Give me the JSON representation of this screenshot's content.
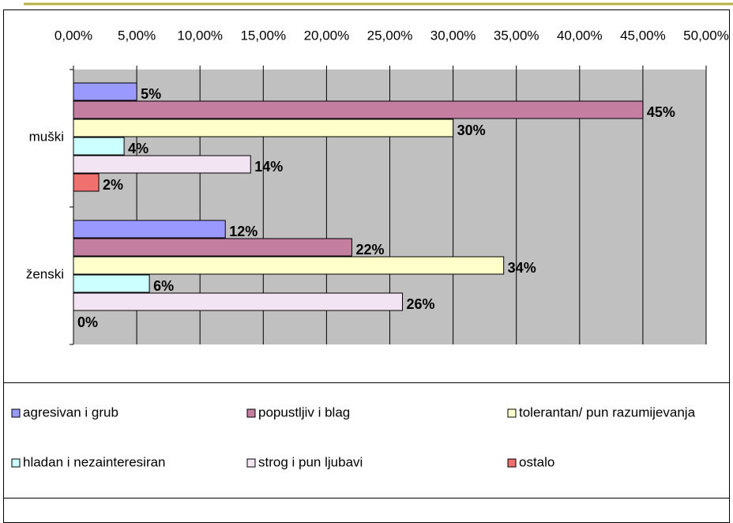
{
  "chart_data": {
    "type": "barh",
    "categories": [
      "muški",
      "ženski"
    ],
    "series": [
      {
        "name": "agresivan i grub",
        "color": "#9999ff",
        "values": [
          5,
          12
        ],
        "value_labels": [
          "5%",
          "12%"
        ]
      },
      {
        "name": "popustljiv i blag",
        "color": "#c47ea0",
        "values": [
          45,
          22
        ],
        "value_labels": [
          "45%",
          "22%"
        ]
      },
      {
        "name": "tolerantan/ pun razumijevanja",
        "color": "#ffffcc",
        "values": [
          30,
          34
        ],
        "value_labels": [
          "30%",
          "34%"
        ]
      },
      {
        "name": "hladan i nezainteresiran",
        "color": "#ccffff",
        "values": [
          4,
          6
        ],
        "value_labels": [
          "4%",
          "6%"
        ]
      },
      {
        "name": "strog  i pun ljubavi",
        "color": "#f2e4f2",
        "values": [
          14,
          26
        ],
        "value_labels": [
          "14%",
          "26%"
        ]
      },
      {
        "name": "ostalo",
        "color": "#f07070",
        "values": [
          2,
          0
        ],
        "value_labels": [
          "2%",
          "0%"
        ]
      }
    ],
    "xlim": [
      0,
      50
    ],
    "xticks": [
      {
        "value": 0,
        "label": "0,00%"
      },
      {
        "value": 5,
        "label": "5,00%"
      },
      {
        "value": 10,
        "label": "10,00%"
      },
      {
        "value": 15,
        "label": "15,00%"
      },
      {
        "value": 20,
        "label": "20,00%"
      },
      {
        "value": 25,
        "label": "25,00%"
      },
      {
        "value": 30,
        "label": "30,00%"
      },
      {
        "value": 35,
        "label": "35,00%"
      },
      {
        "value": 40,
        "label": "40,00%"
      },
      {
        "value": 45,
        "label": "45,00%"
      },
      {
        "value": 50,
        "label": "50,00%"
      }
    ],
    "grid": true
  }
}
